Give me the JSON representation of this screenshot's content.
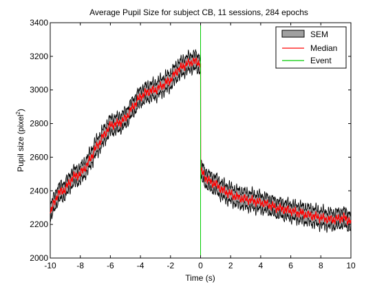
{
  "chart_data": {
    "type": "line",
    "title": "Average Pupil Size for subject CB, 11 sessions, 284 epochs",
    "xlabel": "Time (s)",
    "ylabel": "Pupil size (pixel",
    "ylabel_sup": "2",
    "ylabel_close": ")",
    "xlim": [
      -10,
      10
    ],
    "ylim": [
      2000,
      3400
    ],
    "x_ticks": [
      -10,
      -8,
      -6,
      -4,
      -2,
      0,
      2,
      4,
      6,
      8,
      10
    ],
    "y_ticks": [
      2000,
      2200,
      2400,
      2600,
      2800,
      3000,
      3200,
      3400
    ],
    "grid": false,
    "legend_position": "top-right",
    "legend": [
      {
        "label": "SEM",
        "color": "#a0a0a0",
        "edge": "#000000",
        "kind": "patch"
      },
      {
        "label": "Median",
        "color": "#ff0000",
        "kind": "line"
      },
      {
        "label": "Event",
        "color": "#00cc00",
        "kind": "line"
      }
    ],
    "event_x": 0,
    "sem_half_width": 45,
    "series": [
      {
        "name": "Median",
        "color": "#ff0000",
        "x": [
          -10,
          -9.5,
          -9,
          -8.5,
          -8,
          -7.5,
          -7,
          -6.5,
          -6,
          -5.5,
          -5,
          -4.5,
          -4,
          -3.5,
          -3,
          -2.5,
          -2,
          -1.5,
          -1,
          -0.5,
          0,
          0.01,
          0.5,
          1,
          1.5,
          2,
          2.5,
          3,
          3.5,
          4,
          4.5,
          5,
          5.5,
          6,
          6.5,
          7,
          7.5,
          8,
          8.5,
          9,
          9.5,
          10
        ],
        "values": [
          2270,
          2380,
          2410,
          2480,
          2500,
          2560,
          2650,
          2720,
          2790,
          2800,
          2830,
          2900,
          2960,
          2990,
          3000,
          3030,
          3060,
          3120,
          3150,
          3170,
          3160,
          2520,
          2460,
          2440,
          2400,
          2380,
          2360,
          2350,
          2340,
          2330,
          2320,
          2300,
          2290,
          2280,
          2270,
          2260,
          2250,
          2240,
          2230,
          2230,
          2240,
          2220
        ]
      }
    ]
  }
}
